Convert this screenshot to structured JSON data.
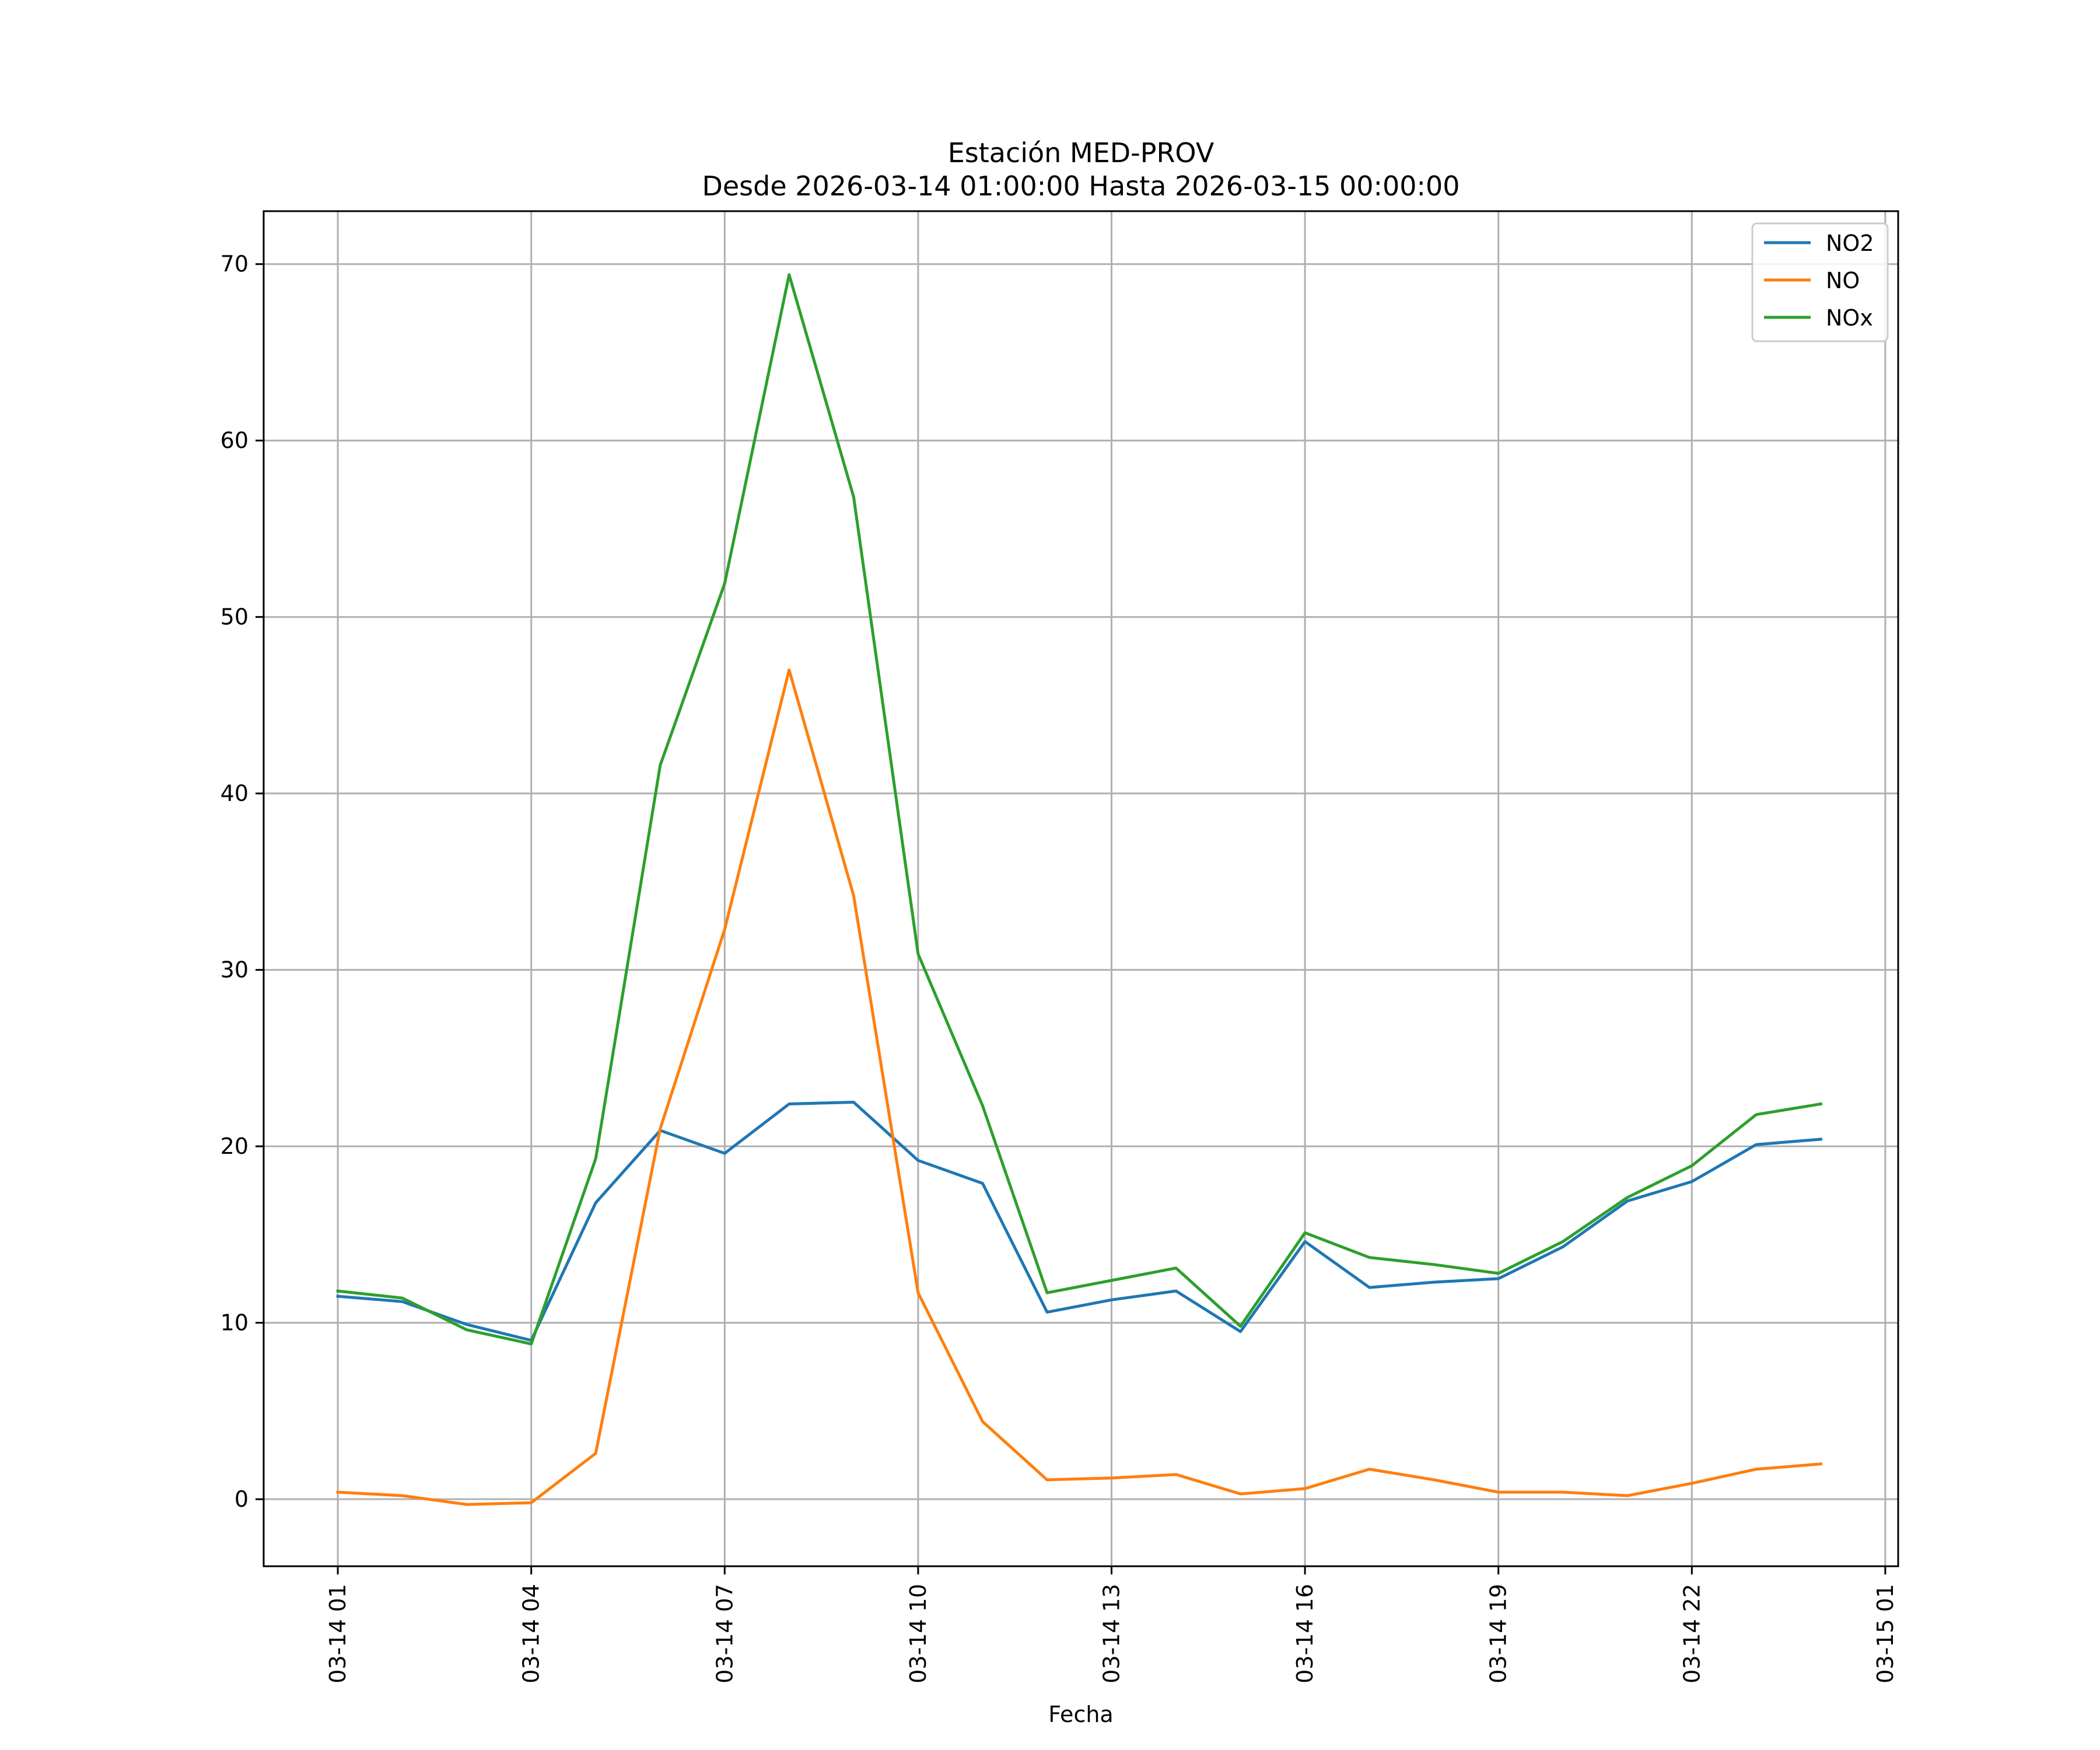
{
  "chart_data": {
    "type": "line",
    "title": "Estación MED-PROV",
    "subtitle": "Desde 2026-03-14 01:00:00 Hasta 2026-03-15 00:00:00",
    "xlabel": "Fecha",
    "ylabel": "",
    "x": [
      "03-14 01",
      "03-14 02",
      "03-14 03",
      "03-14 04",
      "03-14 05",
      "03-14 06",
      "03-14 07",
      "03-14 08",
      "03-14 09",
      "03-14 10",
      "03-14 11",
      "03-14 12",
      "03-14 13",
      "03-14 14",
      "03-14 15",
      "03-14 16",
      "03-14 17",
      "03-14 18",
      "03-14 19",
      "03-14 20",
      "03-14 21",
      "03-14 22",
      "03-14 23",
      "03-15 00"
    ],
    "x_hours": [
      1,
      2,
      3,
      4,
      5,
      6,
      7,
      8,
      9,
      10,
      11,
      12,
      13,
      14,
      15,
      16,
      17,
      18,
      19,
      20,
      21,
      22,
      23,
      24
    ],
    "xlim": [
      -0.15,
      25.2
    ],
    "xticks": [
      {
        "hour": 1,
        "label": "03-14 01"
      },
      {
        "hour": 4,
        "label": "03-14 04"
      },
      {
        "hour": 7,
        "label": "03-14 07"
      },
      {
        "hour": 10,
        "label": "03-14 10"
      },
      {
        "hour": 13,
        "label": "03-14 13"
      },
      {
        "hour": 16,
        "label": "03-14 16"
      },
      {
        "hour": 19,
        "label": "03-14 19"
      },
      {
        "hour": 22,
        "label": "03-14 22"
      },
      {
        "hour": 25,
        "label": "03-15 01"
      }
    ],
    "ylim": [
      -3.8,
      73
    ],
    "yticks": [
      0,
      10,
      20,
      30,
      40,
      50,
      60,
      70
    ],
    "grid": true,
    "legend_position": "top-right",
    "series": [
      {
        "name": "NO2",
        "color": "#1f77b4",
        "values": [
          11.5,
          11.2,
          9.9,
          9.0,
          16.8,
          20.9,
          19.6,
          22.4,
          22.5,
          19.2,
          17.9,
          10.6,
          11.3,
          11.8,
          9.5,
          14.6,
          12.0,
          12.3,
          12.5,
          14.3,
          16.9,
          18.0,
          20.1,
          20.4
        ]
      },
      {
        "name": "NO",
        "color": "#ff7f0e",
        "values": [
          0.4,
          0.2,
          -0.3,
          -0.2,
          2.6,
          21.0,
          32.3,
          47.0,
          34.2,
          11.7,
          4.4,
          1.1,
          1.2,
          1.4,
          0.3,
          0.6,
          1.7,
          1.1,
          0.4,
          0.4,
          0.2,
          0.9,
          1.7,
          2.0
        ]
      },
      {
        "name": "NOx",
        "color": "#2ca02c",
        "values": [
          11.8,
          11.4,
          9.6,
          8.8,
          19.3,
          41.6,
          51.9,
          69.4,
          56.8,
          30.9,
          22.3,
          11.7,
          12.4,
          13.1,
          9.8,
          15.1,
          13.7,
          13.3,
          12.8,
          14.6,
          17.1,
          18.9,
          21.8,
          22.4
        ]
      }
    ]
  }
}
